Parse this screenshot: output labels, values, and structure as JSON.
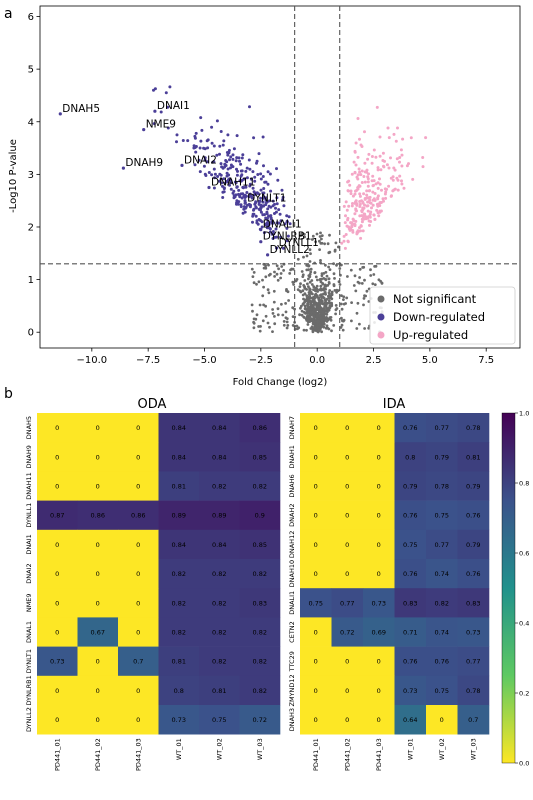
{
  "panels": {
    "a": "a",
    "b": "b"
  },
  "chart_data": [
    {
      "type": "scatter",
      "panel": "a",
      "xlabel": "Fold Change (log2)",
      "ylabel": "-Log10 P-value",
      "xlim": [
        -12.3,
        9.0
      ],
      "ylim": [
        -0.3,
        6.2
      ],
      "xticks": [
        -10.0,
        -7.5,
        -5.0,
        -2.5,
        0.0,
        2.5,
        5.0,
        7.5
      ],
      "xtick_labels": [
        "−10.0",
        "−7.5",
        "−5.0",
        "−2.5",
        "0.0",
        "2.5",
        "5.0",
        "7.5"
      ],
      "yticks": [
        0,
        1,
        2,
        3,
        4,
        5,
        6
      ],
      "ytick_labels": [
        "0",
        "1",
        "2",
        "3",
        "4",
        "5",
        "6"
      ],
      "thresholds": {
        "fold_change": [
          -1,
          1
        ],
        "p_value": 1.3
      },
      "legend_position": "lower-right",
      "series": [
        {
          "name": "Not significant",
          "color": "#6b6b6b",
          "count": 700
        },
        {
          "name": "Down-regulated",
          "color": "#4b3f98",
          "count": 330
        },
        {
          "name": "Up-regulated",
          "color": "#f4a6c6",
          "count": 260
        }
      ],
      "labeled_points": [
        {
          "label": "DNAH5",
          "x": -11.4,
          "y": 4.15
        },
        {
          "label": "DNAI1",
          "x": -7.2,
          "y": 4.2
        },
        {
          "label": "NME9",
          "x": -7.7,
          "y": 3.85
        },
        {
          "label": "DNAH9",
          "x": -8.6,
          "y": 3.12
        },
        {
          "label": "DNAI2",
          "x": -6.0,
          "y": 3.17
        },
        {
          "label": "DNAH11",
          "x": -4.8,
          "y": 2.75
        },
        {
          "label": "DYNLT1",
          "x": -3.2,
          "y": 2.45
        },
        {
          "label": "DNALI1",
          "x": -2.5,
          "y": 1.95
        },
        {
          "label": "DYNLRB1",
          "x": -2.5,
          "y": 1.72
        },
        {
          "label": "DYNLL1",
          "x": -1.8,
          "y": 1.6
        },
        {
          "label": "DYNLL2",
          "x": -2.2,
          "y": 1.47
        }
      ]
    },
    {
      "type": "heatmap",
      "panel": "b",
      "colorbar": {
        "range": [
          0.0,
          1.0
        ],
        "ticks": [
          "0.0",
          "0.2",
          "0.4",
          "0.6",
          "0.8",
          "1.0"
        ],
        "colormap": "viridis-reversed"
      },
      "subplots": [
        {
          "title": "ODA",
          "columns": [
            "PD441_01",
            "PD441_02",
            "PD441_03",
            "WT_01",
            "WT_02",
            "WT_03"
          ],
          "rows": [
            "DNAH5",
            "DNAH9",
            "DNAH11",
            "DYNLL1",
            "DNAI1",
            "DNAI2",
            "NME9",
            "DNAL1",
            "DYNLT1",
            "DYNLRB1",
            "DYNLL2"
          ],
          "values": [
            [
              0,
              0,
              0,
              0.84,
              0.84,
              0.86
            ],
            [
              0,
              0,
              0,
              0.84,
              0.84,
              0.85
            ],
            [
              0,
              0,
              0,
              0.81,
              0.82,
              0.82
            ],
            [
              0.87,
              0.86,
              0.86,
              0.89,
              0.89,
              0.9
            ],
            [
              0,
              0,
              0,
              0.84,
              0.84,
              0.85
            ],
            [
              0,
              0,
              0,
              0.82,
              0.82,
              0.82
            ],
            [
              0,
              0,
              0,
              0.82,
              0.82,
              0.83
            ],
            [
              0,
              0.67,
              0,
              0.82,
              0.82,
              0.82
            ],
            [
              0.73,
              0,
              0.7,
              0.81,
              0.82,
              0.82
            ],
            [
              0,
              0,
              0,
              0.8,
              0.81,
              0.82
            ],
            [
              0,
              0,
              0,
              0.73,
              0.75,
              0.72
            ]
          ]
        },
        {
          "title": "IDA",
          "columns": [
            "PD441_01",
            "PD441_02",
            "PD441_03",
            "WT_01",
            "WT_02",
            "WT_03"
          ],
          "rows": [
            "DNAH7",
            "DNAH1",
            "DNAH6",
            "DNAH2",
            "DNAH12",
            "DNAH10",
            "DNALI1",
            "CETN2",
            "TTC29",
            "ZMYND12",
            "DNAH3"
          ],
          "values": [
            [
              0,
              0,
              0,
              0.76,
              0.77,
              0.78
            ],
            [
              0,
              0,
              0,
              0.8,
              0.79,
              0.81
            ],
            [
              0,
              0,
              0,
              0.79,
              0.78,
              0.79
            ],
            [
              0,
              0,
              0,
              0.76,
              0.75,
              0.76
            ],
            [
              0,
              0,
              0,
              0.75,
              0.77,
              0.79
            ],
            [
              0,
              0,
              0,
              0.76,
              0.74,
              0.76
            ],
            [
              0.75,
              0.77,
              0.73,
              0.83,
              0.82,
              0.83
            ],
            [
              0,
              0.72,
              0.69,
              0.71,
              0.74,
              0.73
            ],
            [
              0,
              0,
              0,
              0.76,
              0.76,
              0.77
            ],
            [
              0,
              0,
              0,
              0.73,
              0.75,
              0.78
            ],
            [
              0,
              0,
              0,
              0.64,
              0,
              0.7
            ]
          ]
        }
      ]
    }
  ]
}
